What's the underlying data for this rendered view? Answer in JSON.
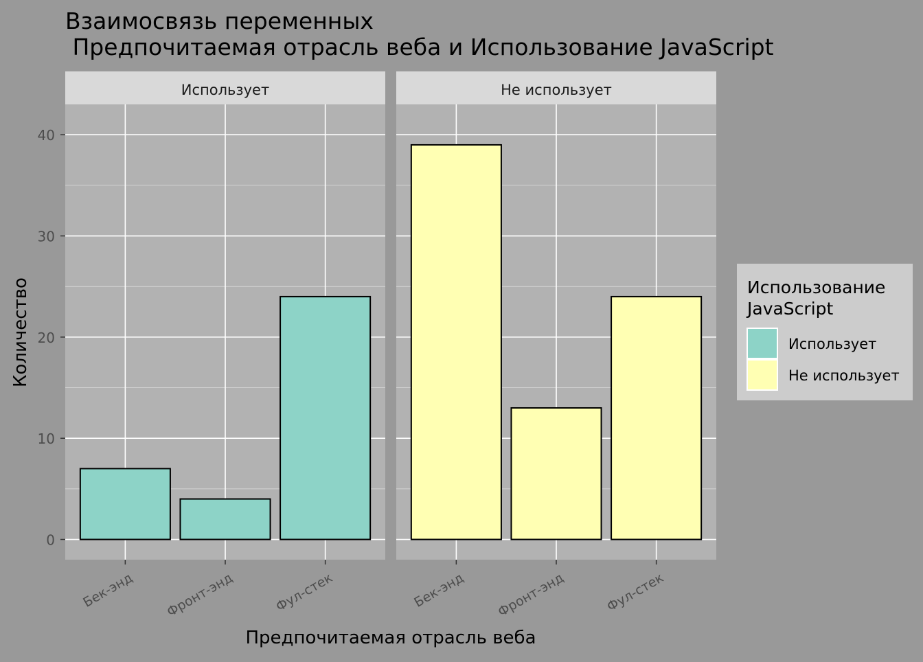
{
  "chart_data": {
    "type": "bar",
    "title_line1": "Взаимосвязь переменных",
    "title_line2": " Предпочитаемая отрасль веба и Использование JavaScript",
    "xlabel": "Предпочитаемая отрасль веба",
    "ylabel": "Количество",
    "ylim": [
      -2,
      43
    ],
    "yticks": [
      0,
      10,
      20,
      30,
      40
    ],
    "categories": [
      "Бек-энд",
      "Фронт-энд",
      "Фул-стек"
    ],
    "facets": [
      {
        "label": "Использует",
        "color": "#8DD3C7",
        "values": [
          7,
          4,
          24
        ]
      },
      {
        "label": "Не использует",
        "color": "#FFFFB3",
        "values": [
          39,
          13,
          24
        ]
      }
    ],
    "legend": {
      "title_line1": "Использование",
      "title_line2": "JavaScript",
      "position": "right",
      "items": [
        {
          "label": "Использует",
          "color": "#8DD3C7"
        },
        {
          "label": "Не использует",
          "color": "#FFFFB3"
        }
      ]
    },
    "colors": {
      "background": "#999999",
      "panel": "#B2B2B2",
      "strip": "#D9D9D9",
      "legend_bg": "#CCCCCC",
      "grid": "#FFFFFF",
      "bar_outline": "#000000"
    },
    "grid": true
  }
}
